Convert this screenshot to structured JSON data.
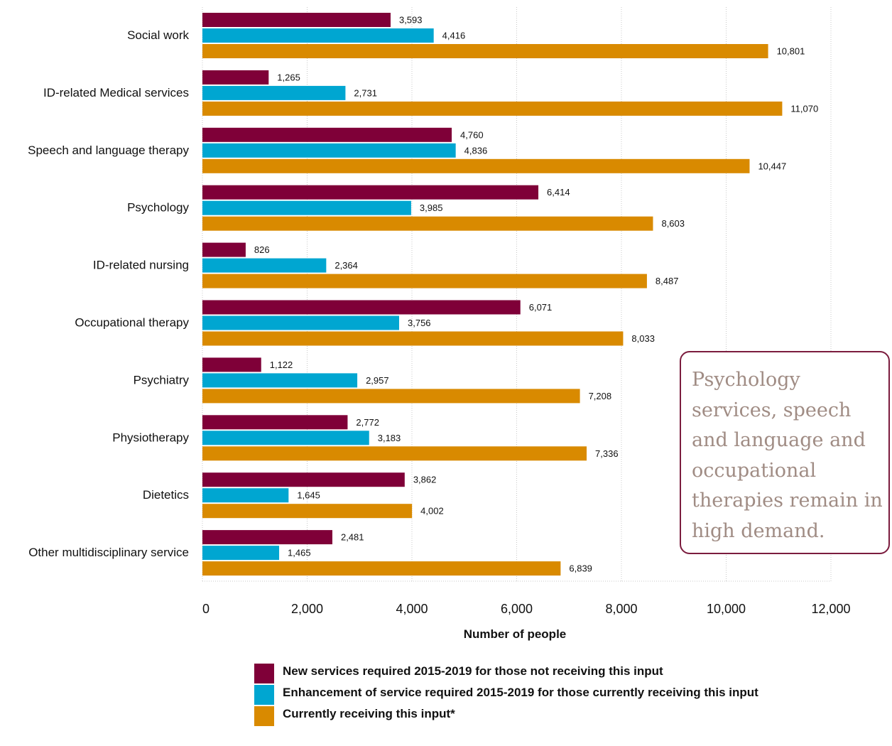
{
  "chart_data": {
    "type": "bar",
    "orientation": "horizontal",
    "categories": [
      "Social work",
      "ID-related Medical services",
      "Speech and language therapy",
      "Psychology",
      "ID-related nursing",
      "Occupational therapy",
      "Psychiatry",
      "Physiotherapy",
      "Dietetics",
      "Other multidisciplinary service"
    ],
    "series": [
      {
        "name": "New services required 2015-2019 for those not receiving this input",
        "color": "#7f0038",
        "values": [
          3593,
          1265,
          4760,
          6414,
          826,
          6071,
          1122,
          2772,
          3862,
          2481
        ],
        "labels": [
          "3,593",
          "1,265",
          "4,760",
          "6,414",
          "826",
          "6,071",
          "1,122",
          "2,772",
          "3,862",
          "2,481"
        ]
      },
      {
        "name": "Enhancement of service required 2015-2019 for those currently receiving this input",
        "color": "#00a6d1",
        "values": [
          4416,
          2731,
          4836,
          3985,
          2364,
          3756,
          2957,
          3183,
          1645,
          1465
        ],
        "labels": [
          "4,416",
          "2,731",
          "4,836",
          "3,985",
          "2,364",
          "3,756",
          "2,957",
          "3,183",
          "1,645",
          "1,465"
        ]
      },
      {
        "name": "Currently receiving this input*",
        "color": "#d98a00",
        "values": [
          10801,
          11070,
          10447,
          8603,
          8487,
          8033,
          7208,
          7336,
          4002,
          6839
        ],
        "labels": [
          "10,801",
          "11,070",
          "10,447",
          "8,603",
          "8,487",
          "8,033",
          "7,208",
          "7,336",
          "4,002",
          "6,839"
        ]
      }
    ],
    "xlabel": "Number of people",
    "ylabel": "",
    "xlim": [
      0,
      12000
    ],
    "xticks": [
      0,
      2000,
      4000,
      6000,
      8000,
      10000,
      12000
    ],
    "xtick_labels": [
      "0",
      "2,000",
      "4,000",
      "6,000",
      "8,000",
      "10,000",
      "12,000"
    ],
    "grid": "vertical dotted",
    "legend_position": "bottom"
  },
  "callout": {
    "text": "Psychology services, speech and language and occupational therapies remain in high demand."
  }
}
